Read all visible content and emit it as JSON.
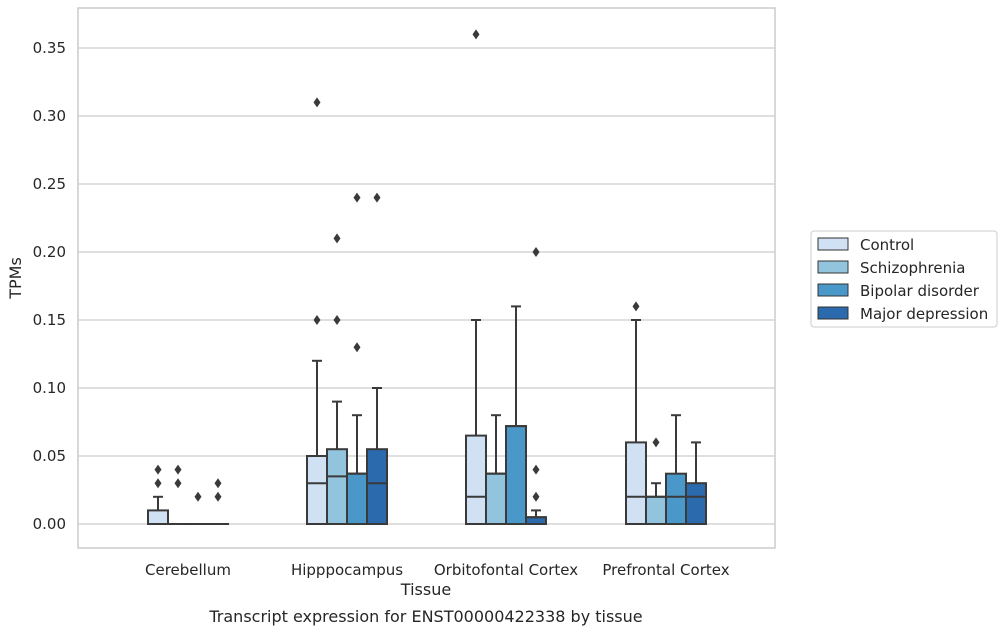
{
  "caption": "Transcript expression for ENST00000422338 by tissue",
  "chart_data": {
    "type": "box",
    "xlabel": "Tissue",
    "ylabel": "TPMs",
    "ylim": [
      -0.018,
      0.378
    ],
    "yticks": [
      "0.00",
      "0.05",
      "0.10",
      "0.15",
      "0.20",
      "0.25",
      "0.30",
      "0.35"
    ],
    "ytick_values": [
      0,
      0.05,
      0.1,
      0.15,
      0.2,
      0.25,
      0.3,
      0.35
    ],
    "grid": "horizontal",
    "legend_position": "right",
    "categories": [
      "Cerebellum",
      "Hipppocampus",
      "Orbitofontal Cortex",
      "Prefrontal Cortex"
    ],
    "series": [
      {
        "name": "Control",
        "color": "#cfe1f2",
        "boxes": [
          {
            "q1": 0,
            "median": 0,
            "q3": 0.01,
            "whisker_low": 0,
            "whisker_high": 0.02,
            "outliers": [
              0.03,
              0.04
            ]
          },
          {
            "q1": 0,
            "median": 0.03,
            "q3": 0.05,
            "whisker_low": 0,
            "whisker_high": 0.12,
            "outliers": [
              0.15,
              0.31
            ]
          },
          {
            "q1": 0,
            "median": 0.02,
            "q3": 0.065,
            "whisker_low": 0,
            "whisker_high": 0.15,
            "outliers": [
              0.36
            ]
          },
          {
            "q1": 0,
            "median": 0.02,
            "q3": 0.06,
            "whisker_low": 0,
            "whisker_high": 0.15,
            "outliers": [
              0.16
            ]
          }
        ]
      },
      {
        "name": "Schizophrenia",
        "color": "#93c4de",
        "boxes": [
          {
            "q1": 0,
            "median": 0,
            "q3": 0,
            "whisker_low": 0,
            "whisker_high": 0,
            "outliers": [
              0.03,
              0.04
            ]
          },
          {
            "q1": 0,
            "median": 0.035,
            "q3": 0.055,
            "whisker_low": 0,
            "whisker_high": 0.09,
            "outliers": [
              0.15,
              0.21
            ]
          },
          {
            "q1": 0,
            "median": 0.037,
            "q3": 0.037,
            "whisker_low": 0,
            "whisker_high": 0.08,
            "outliers": []
          },
          {
            "q1": 0,
            "median": 0.02,
            "q3": 0.02,
            "whisker_low": 0,
            "whisker_high": 0.03,
            "outliers": [
              0.06
            ]
          }
        ]
      },
      {
        "name": "Bipolar disorder",
        "color": "#4a98c9",
        "boxes": [
          {
            "q1": 0,
            "median": 0,
            "q3": 0,
            "whisker_low": 0,
            "whisker_high": 0,
            "outliers": [
              0.02
            ]
          },
          {
            "q1": 0,
            "median": 0.037,
            "q3": 0.037,
            "whisker_low": 0,
            "whisker_high": 0.08,
            "outliers": [
              0.13,
              0.24
            ]
          },
          {
            "q1": 0,
            "median": 0.072,
            "q3": 0.072,
            "whisker_low": 0,
            "whisker_high": 0.16,
            "outliers": []
          },
          {
            "q1": 0,
            "median": 0.02,
            "q3": 0.037,
            "whisker_low": 0,
            "whisker_high": 0.08,
            "outliers": []
          }
        ]
      },
      {
        "name": "Major depression",
        "color": "#2a6aad",
        "boxes": [
          {
            "q1": 0,
            "median": 0,
            "q3": 0,
            "whisker_low": 0,
            "whisker_high": 0,
            "outliers": [
              0.02,
              0.03
            ]
          },
          {
            "q1": 0,
            "median": 0.03,
            "q3": 0.055,
            "whisker_low": 0,
            "whisker_high": 0.1,
            "outliers": [
              0.24
            ]
          },
          {
            "q1": 0,
            "median": 0.005,
            "q3": 0.005,
            "whisker_low": 0,
            "whisker_high": 0.01,
            "outliers": [
              0.02,
              0.04,
              0.2
            ]
          },
          {
            "q1": 0,
            "median": 0.02,
            "q3": 0.03,
            "whisker_low": 0,
            "whisker_high": 0.06,
            "outliers": []
          }
        ]
      }
    ]
  }
}
